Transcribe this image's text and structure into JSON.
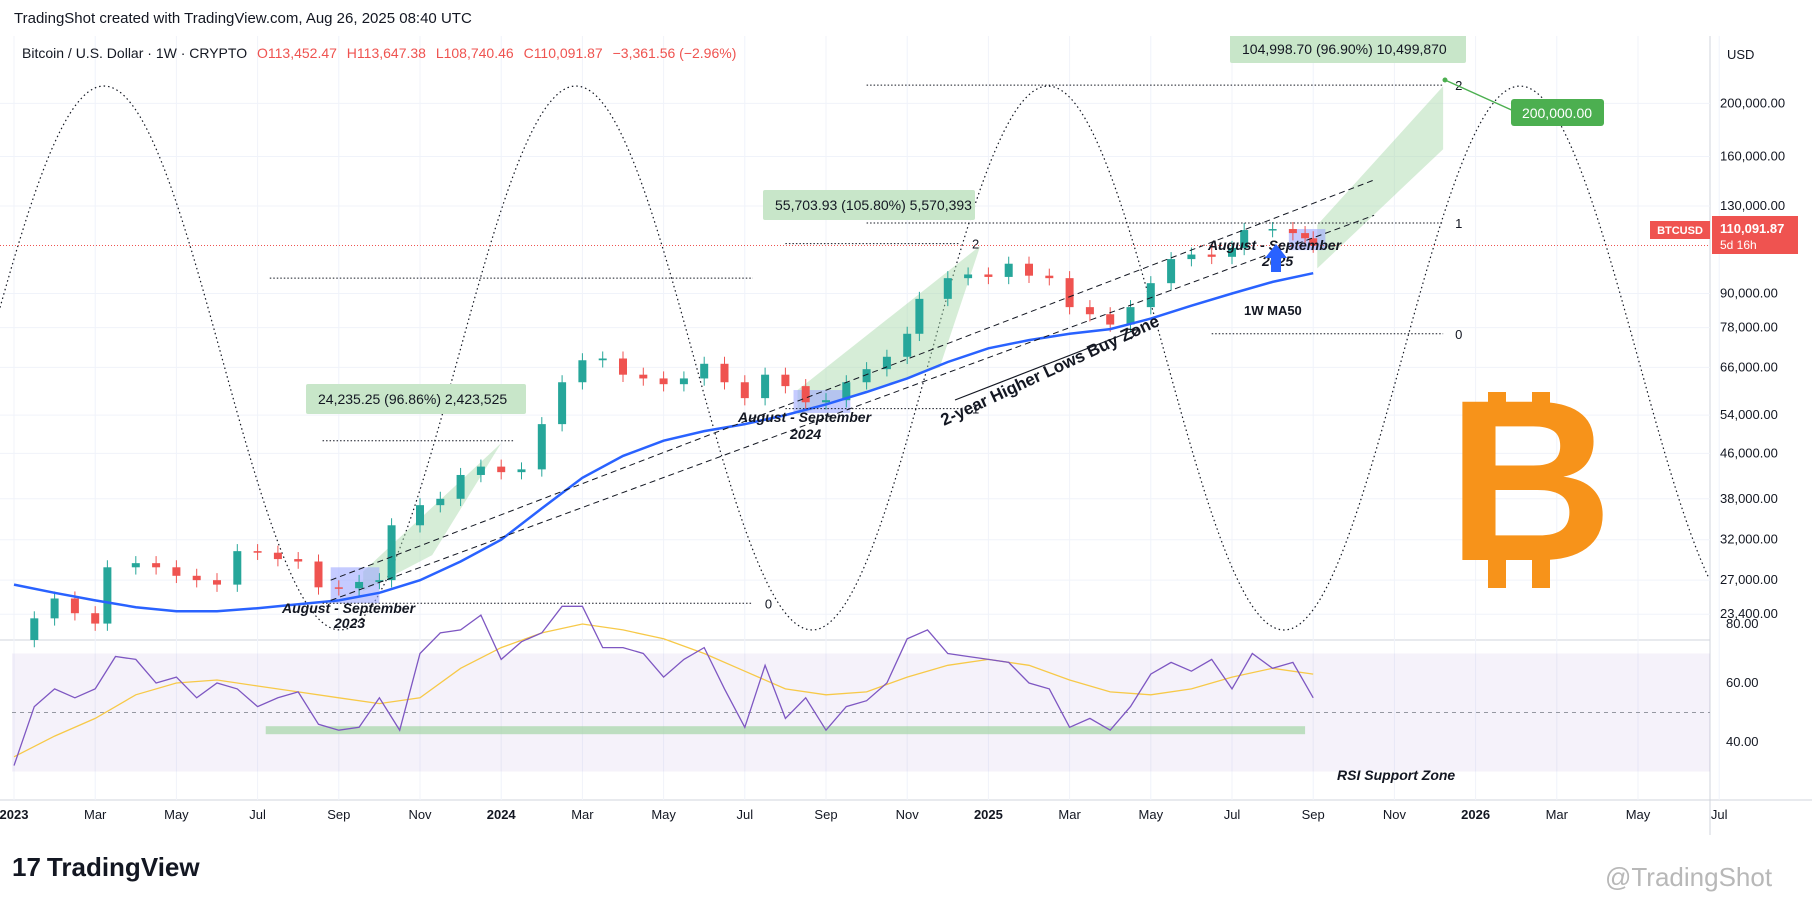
{
  "header": {
    "attribution": "TradingShot created with TradingView.com, Aug 26, 2025 08:40 UTC"
  },
  "chart_data": {
    "type": "candlestick",
    "symbol_line": {
      "title": "Bitcoin / U.S. Dollar · 1W · CRYPTO",
      "o": "O113,452.47",
      "h": "H113,647.38",
      "l": "L108,740.46",
      "c": "C110,091.87",
      "chg": "−3,361.56 (−2.96%)"
    },
    "currency": "USD",
    "y_scale": "log",
    "ylim": [
      21000,
      240000
    ],
    "y_ticks": [
      {
        "v": 200000,
        "label": "200,000.00"
      },
      {
        "v": 160000,
        "label": "160,000.00"
      },
      {
        "v": 130000,
        "label": "130,000.00"
      },
      {
        "v": 90000,
        "label": "90,000.00"
      },
      {
        "v": 78000,
        "label": "78,000.00"
      },
      {
        "v": 66000,
        "label": "66,000.00"
      },
      {
        "v": 54000,
        "label": "54,000.00"
      },
      {
        "v": 46000,
        "label": "46,000.00"
      },
      {
        "v": 38000,
        "label": "38,000.00"
      },
      {
        "v": 32000,
        "label": "32,000.00"
      },
      {
        "v": 27000,
        "label": "27,000.00"
      },
      {
        "v": 23400,
        "label": "23,400.00"
      }
    ],
    "x_ticks": [
      {
        "t": 0,
        "label": "2023",
        "bold": true
      },
      {
        "t": 2,
        "label": "Mar"
      },
      {
        "t": 4,
        "label": "May"
      },
      {
        "t": 6,
        "label": "Jul"
      },
      {
        "t": 8,
        "label": "Sep"
      },
      {
        "t": 10,
        "label": "Nov"
      },
      {
        "t": 12,
        "label": "2024",
        "bold": true
      },
      {
        "t": 14,
        "label": "Mar"
      },
      {
        "t": 16,
        "label": "May"
      },
      {
        "t": 18,
        "label": "Jul"
      },
      {
        "t": 20,
        "label": "Sep"
      },
      {
        "t": 22,
        "label": "Nov"
      },
      {
        "t": 24,
        "label": "2025",
        "bold": true
      },
      {
        "t": 26,
        "label": "Mar"
      },
      {
        "t": 28,
        "label": "May"
      },
      {
        "t": 30,
        "label": "Jul"
      },
      {
        "t": 32,
        "label": "Sep"
      },
      {
        "t": 34,
        "label": "Nov"
      },
      {
        "t": 36,
        "label": "2026",
        "bold": true
      },
      {
        "t": 38,
        "label": "Mar"
      },
      {
        "t": 40,
        "label": "May"
      },
      {
        "t": 42,
        "label": "Jul"
      }
    ],
    "price": [
      [
        0,
        21000
      ],
      [
        0.5,
        23000
      ],
      [
        1,
        25000
      ],
      [
        1.5,
        23500
      ],
      [
        2,
        22500
      ],
      [
        2.3,
        28500
      ],
      [
        3,
        29000
      ],
      [
        3.5,
        28500
      ],
      [
        4,
        27500
      ],
      [
        4.5,
        27000
      ],
      [
        5,
        26500
      ],
      [
        5.5,
        30500
      ],
      [
        6,
        30300
      ],
      [
        6.5,
        29500
      ],
      [
        7,
        29200
      ],
      [
        7.5,
        26200
      ],
      [
        8,
        26100
      ],
      [
        8.5,
        26800
      ],
      [
        9,
        27000
      ],
      [
        9.3,
        34000
      ],
      [
        10,
        37000
      ],
      [
        10.5,
        38000
      ],
      [
        11,
        42000
      ],
      [
        11.5,
        43500
      ],
      [
        12,
        42500
      ],
      [
        12.5,
        43000
      ],
      [
        13,
        52000
      ],
      [
        13.5,
        62000
      ],
      [
        14,
        68000
      ],
      [
        14.5,
        68500
      ],
      [
        15,
        64000
      ],
      [
        15.5,
        63000
      ],
      [
        16,
        61500
      ],
      [
        16.5,
        63000
      ],
      [
        17,
        67000
      ],
      [
        17.5,
        62000
      ],
      [
        18,
        58000
      ],
      [
        18.5,
        64000
      ],
      [
        19,
        61000
      ],
      [
        19.5,
        57000
      ],
      [
        20,
        57500
      ],
      [
        20.5,
        62000
      ],
      [
        21,
        65500
      ],
      [
        21.5,
        69000
      ],
      [
        22,
        76000
      ],
      [
        22.3,
        88000
      ],
      [
        23,
        96000
      ],
      [
        23.5,
        97500
      ],
      [
        24,
        96500
      ],
      [
        24.5,
        102000
      ],
      [
        25,
        97000
      ],
      [
        25.5,
        96000
      ],
      [
        26,
        85000
      ],
      [
        26.5,
        82500
      ],
      [
        27,
        79000
      ],
      [
        27.5,
        85000
      ],
      [
        28,
        94000
      ],
      [
        28.5,
        104000
      ],
      [
        29,
        106000
      ],
      [
        29.5,
        105000
      ],
      [
        30,
        109000
      ],
      [
        30.3,
        117500
      ],
      [
        31,
        118000
      ],
      [
        31.5,
        116000
      ],
      [
        31.8,
        113500
      ],
      [
        32,
        110091
      ]
    ],
    "ma50": [
      [
        0,
        26500
      ],
      [
        1,
        25600
      ],
      [
        2,
        24800
      ],
      [
        3,
        24100
      ],
      [
        4,
        23700
      ],
      [
        5,
        23700
      ],
      [
        6,
        24000
      ],
      [
        7,
        24400
      ],
      [
        8,
        24800
      ],
      [
        9,
        25600
      ],
      [
        10,
        27000
      ],
      [
        11,
        29200
      ],
      [
        12,
        32000
      ],
      [
        13,
        36500
      ],
      [
        14,
        41500
      ],
      [
        15,
        45500
      ],
      [
        16,
        48500
      ],
      [
        17,
        50500
      ],
      [
        18,
        52000
      ],
      [
        19,
        54000
      ],
      [
        20,
        56500
      ],
      [
        21,
        59500
      ],
      [
        22,
        63000
      ],
      [
        23,
        67500
      ],
      [
        24,
        71500
      ],
      [
        25,
        74000
      ],
      [
        26,
        76000
      ],
      [
        27,
        77500
      ],
      [
        28,
        81000
      ],
      [
        29,
        85500
      ],
      [
        30,
        90000
      ],
      [
        31,
        94500
      ],
      [
        32,
        98000
      ]
    ],
    "rsi": [
      [
        0,
        32
      ],
      [
        0.5,
        52
      ],
      [
        1,
        58
      ],
      [
        1.5,
        55
      ],
      [
        2,
        58
      ],
      [
        2.5,
        69
      ],
      [
        3,
        68
      ],
      [
        3.5,
        60
      ],
      [
        4,
        62
      ],
      [
        4.5,
        55
      ],
      [
        5,
        60
      ],
      [
        5.5,
        58
      ],
      [
        6,
        52
      ],
      [
        6.5,
        55
      ],
      [
        7,
        57
      ],
      [
        7.5,
        46
      ],
      [
        8,
        44
      ],
      [
        8.5,
        45
      ],
      [
        9,
        55
      ],
      [
        9.5,
        44
      ],
      [
        10,
        70
      ],
      [
        10.5,
        77
      ],
      [
        11,
        78
      ],
      [
        11.5,
        83
      ],
      [
        12,
        68
      ],
      [
        12.5,
        74
      ],
      [
        13,
        77
      ],
      [
        13.5,
        88
      ],
      [
        14,
        86
      ],
      [
        14.5,
        72
      ],
      [
        15,
        72
      ],
      [
        15.5,
        70
      ],
      [
        16,
        62
      ],
      [
        16.5,
        68
      ],
      [
        17,
        72
      ],
      [
        17.5,
        58
      ],
      [
        18,
        45
      ],
      [
        18.5,
        66
      ],
      [
        19,
        48
      ],
      [
        19.5,
        55
      ],
      [
        20,
        44
      ],
      [
        20.5,
        52
      ],
      [
        21,
        54
      ],
      [
        21.5,
        60
      ],
      [
        22,
        75
      ],
      [
        22.5,
        78
      ],
      [
        23,
        70
      ],
      [
        23.5,
        69
      ],
      [
        24,
        68
      ],
      [
        24.5,
        67
      ],
      [
        25,
        60
      ],
      [
        25.5,
        58
      ],
      [
        26,
        45
      ],
      [
        26.5,
        48
      ],
      [
        27,
        44
      ],
      [
        27.5,
        52
      ],
      [
        28,
        63
      ],
      [
        28.5,
        67
      ],
      [
        29,
        64
      ],
      [
        29.5,
        68
      ],
      [
        30,
        58
      ],
      [
        30.5,
        70
      ],
      [
        31,
        65
      ],
      [
        31.5,
        67
      ],
      [
        32,
        55
      ]
    ],
    "rsi_ma": [
      [
        0,
        35
      ],
      [
        1,
        42
      ],
      [
        2,
        48
      ],
      [
        3,
        56
      ],
      [
        4,
        60
      ],
      [
        5,
        61
      ],
      [
        6,
        59
      ],
      [
        7,
        57
      ],
      [
        8,
        55
      ],
      [
        9,
        53
      ],
      [
        10,
        55
      ],
      [
        11,
        65
      ],
      [
        12,
        72
      ],
      [
        13,
        77
      ],
      [
        14,
        80
      ],
      [
        15,
        78
      ],
      [
        16,
        75
      ],
      [
        17,
        70
      ],
      [
        18,
        64
      ],
      [
        19,
        58
      ],
      [
        20,
        56
      ],
      [
        21,
        57
      ],
      [
        22,
        62
      ],
      [
        23,
        66
      ],
      [
        24,
        68
      ],
      [
        25,
        66
      ],
      [
        26,
        61
      ],
      [
        27,
        57
      ],
      [
        28,
        56
      ],
      [
        29,
        58
      ],
      [
        30,
        62
      ],
      [
        31,
        65
      ],
      [
        32,
        63
      ]
    ],
    "rsi_ticks": [
      {
        "v": 80,
        "label": "80.00"
      },
      {
        "v": 60,
        "label": "60.00"
      },
      {
        "v": 40,
        "label": "40.00"
      }
    ],
    "rsi_band": [
      30,
      70
    ],
    "last_price": {
      "tag": "BTCUSD",
      "value": "110,091.87",
      "timer": "5d 16h"
    },
    "target_badge": "200,000.00",
    "measure_labels": [
      "24,235.25 (96.86%) 2,423,525",
      "55,703.93 (105.80%) 5,570,393",
      "104,998.70 (96.90%) 10,499,870"
    ],
    "zone_labels": [
      {
        "line1": "August - September",
        "line2": "2023"
      },
      {
        "line1": "August - September",
        "line2": "2024"
      },
      {
        "line1": "August - September",
        "line2": "2025"
      }
    ],
    "fib_levels": [
      "0",
      "1",
      "2"
    ],
    "annotations": {
      "buy_zone": "2-year Higher Lows Buy Zone",
      "ma_label": "1W MA50",
      "rsi_zone": "RSI Support Zone"
    },
    "colors": {
      "up": "#26a69a",
      "down": "#ef5350",
      "ma50": "#2962ff",
      "rsi": "#7e57c2",
      "rsi_ma": "#f7c948",
      "channel": "#a5d6a7",
      "bitcoin": "#f7931a",
      "target": "#4caf50"
    }
  },
  "footer": {
    "logo_mark": "17",
    "logo_text": "TradingView",
    "watermark": "@TradingShot"
  }
}
